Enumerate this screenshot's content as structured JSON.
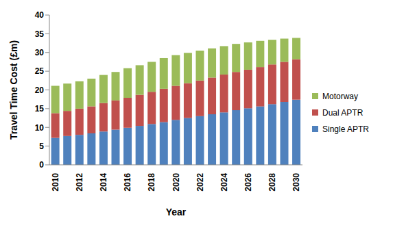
{
  "chart_data": {
    "type": "bar",
    "stacked": true,
    "x_label": "Year",
    "y_label": "Travel Time Cost (£m)",
    "categories": [
      "2010",
      null,
      "2012",
      null,
      "2014",
      null,
      "2016",
      null,
      "2018",
      null,
      "2020",
      null,
      "2022",
      null,
      "2024",
      null,
      "2026",
      null,
      "2028",
      null,
      "2030"
    ],
    "series": [
      {
        "name": "Single APTR",
        "color": "#4f81bd",
        "values": [
          7.2,
          7.7,
          8.0,
          8.4,
          8.9,
          9.4,
          9.9,
          10.4,
          10.9,
          11.4,
          12.0,
          12.5,
          13.0,
          13.5,
          14.0,
          14.6,
          15.1,
          15.6,
          16.2,
          16.8,
          17.4
        ]
      },
      {
        "name": "Dual APTR",
        "color": "#c0504d",
        "values": [
          6.6,
          6.7,
          7.0,
          7.2,
          7.6,
          7.8,
          8.0,
          8.3,
          8.6,
          8.9,
          9.1,
          9.3,
          9.5,
          9.8,
          10.1,
          10.2,
          10.3,
          10.5,
          10.6,
          10.7,
          10.8
        ]
      },
      {
        "name": "Motorway",
        "color": "#9bbb59",
        "values": [
          7.3,
          7.3,
          7.3,
          7.4,
          7.5,
          7.6,
          7.9,
          7.9,
          8.0,
          8.2,
          8.2,
          8.1,
          8.0,
          7.8,
          7.6,
          7.5,
          7.3,
          7.0,
          6.6,
          6.2,
          5.7
        ]
      }
    ],
    "ylim": [
      0,
      40
    ],
    "yticks": [
      0,
      5,
      10,
      15,
      20,
      25,
      30,
      35,
      40
    ],
    "grid": false,
    "legend": "right"
  }
}
